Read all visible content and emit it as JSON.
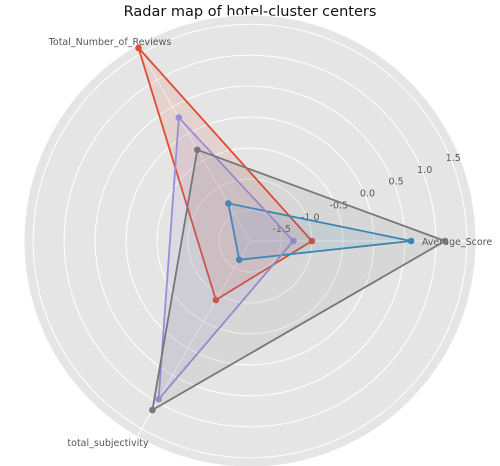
{
  "chart_data": {
    "type": "radar",
    "title": "Radar map of hotel-cluster centers",
    "axes": [
      "Average_Score",
      "Total_Number_of_Reviews",
      "total_subjectivity"
    ],
    "rlim": [
      -2.0,
      1.6
    ],
    "radial_ticks": [
      -1.5,
      -1.0,
      -0.5,
      0.0,
      0.5,
      1.0,
      1.5
    ],
    "radial_tick_labels": [
      "-1.5",
      "-1.0",
      "-0.5",
      "0.0",
      "0.5",
      "1.0",
      "1.5"
    ],
    "grid": true,
    "series": [
      {
        "color": "#e24a33",
        "values": [
          -1.0,
          1.6,
          -0.9
        ]
      },
      {
        "color": "#348abd",
        "values": [
          0.6,
          -1.3,
          -1.65
        ]
      },
      {
        "color": "#988ed5",
        "values": [
          -1.3,
          0.3,
          0.95
        ]
      },
      {
        "color": "#777777",
        "values": [
          1.15,
          -0.3,
          1.15
        ]
      }
    ]
  }
}
